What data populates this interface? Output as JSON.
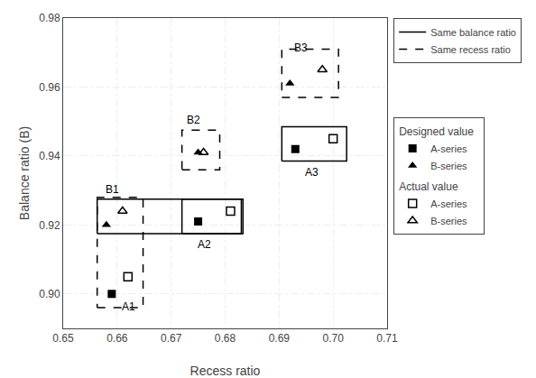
{
  "chart_data": {
    "type": "scatter",
    "xlabel": "Recess ratio",
    "ylabel": "Balance ratio (B)",
    "xlim": [
      0.65,
      0.71
    ],
    "ylim": [
      0.89,
      0.98
    ],
    "xticks": [
      0.65,
      0.66,
      0.67,
      0.68,
      0.69,
      {
        "value": 0.7,
        "label": "0.70"
      },
      0.71
    ],
    "yticks": [
      {
        "value": 0.9,
        "label": "0.90"
      },
      0.92,
      0.94,
      0.96,
      0.98
    ],
    "grid": true,
    "legend": "right",
    "series": [
      {
        "name": "A-series",
        "group": "Designed value",
        "marker": "square",
        "color": "#000000",
        "x": [
          0.659,
          0.675,
          0.693
        ],
        "values": [
          0.9,
          0.921,
          0.942
        ]
      },
      {
        "name": "B-series",
        "group": "Designed value",
        "marker": "triangle-up",
        "color": "#000000",
        "x": [
          0.658,
          0.675,
          0.692
        ],
        "values": [
          0.92,
          0.941,
          0.961
        ]
      },
      {
        "name": "A-series",
        "group": "Actual value",
        "marker": "square-open",
        "color": "#000000",
        "x": [
          0.662,
          0.681,
          0.7
        ],
        "values": [
          0.905,
          0.924,
          0.945
        ]
      },
      {
        "name": "B-series",
        "group": "Actual value",
        "marker": "triangle-up-open",
        "color": "#000000",
        "x": [
          0.661,
          0.676,
          0.698
        ],
        "values": [
          0.924,
          0.941,
          0.965
        ]
      }
    ],
    "rectangles": [
      {
        "name": "Same balance ratio",
        "line_style": "solid",
        "color": "#000000",
        "rects": [
          {
            "x": 0.6563,
            "y": 0.9175,
            "w": 0.027,
            "h": 0.01
          },
          {
            "x": 0.672,
            "y": 0.9175,
            "w": 0.011,
            "h": 0.01
          },
          {
            "x": 0.6905,
            "y": 0.9385,
            "w": 0.012,
            "h": 0.01
          }
        ]
      },
      {
        "name": "Same recess ratio",
        "line_style": "dashed",
        "color": "#000000",
        "rects": [
          {
            "x": 0.6563,
            "y": 0.896,
            "w": 0.0085,
            "h": 0.032
          },
          {
            "x": 0.672,
            "y": 0.936,
            "w": 0.007,
            "h": 0.0115
          },
          {
            "x": 0.6905,
            "y": 0.957,
            "w": 0.0105,
            "h": 0.014
          }
        ]
      }
    ],
    "annotations": [
      {
        "text": "A1",
        "x": 0.6605,
        "y": 0.894
      },
      {
        "text": "A2",
        "x": 0.6745,
        "y": 0.912
      },
      {
        "text": "A3",
        "x": 0.6945,
        "y": 0.933
      },
      {
        "text": "B1",
        "x": 0.6575,
        "y": 0.928
      },
      {
        "text": "B2",
        "x": 0.6725,
        "y": 0.948
      },
      {
        "text": "B3",
        "x": 0.6925,
        "y": 0.969
      }
    ]
  }
}
